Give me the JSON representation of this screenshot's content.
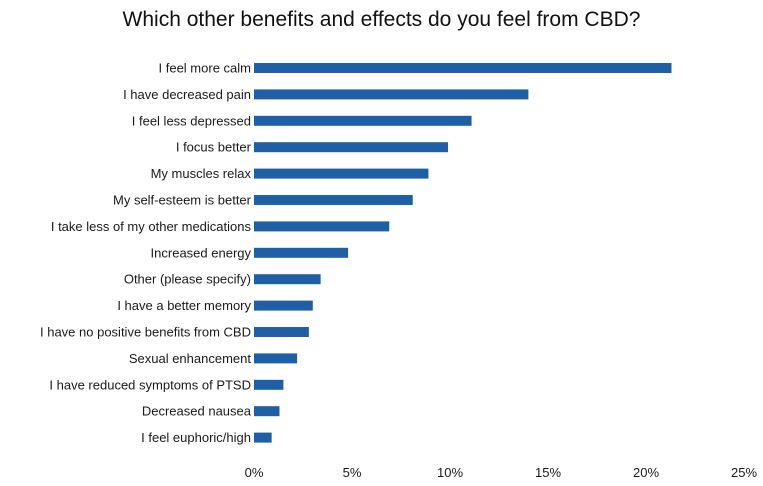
{
  "chart_data": {
    "type": "bar",
    "orientation": "horizontal",
    "title": "Which other benefits and effects do you feel from CBD?",
    "xlabel": "",
    "ylabel": "",
    "categories": [
      "I feel more calm",
      "I have decreased pain",
      "I feel less depressed",
      "I focus better",
      "My muscles relax",
      "My self-esteem is better",
      "I take less of my other medications",
      "Increased energy",
      "Other (please specify)",
      "I have a better memory",
      "I have no positive benefits from CBD",
      "Sexual enhancement",
      "I have reduced symptoms of PTSD",
      "Decreased nausea",
      "I feel euphoric/high"
    ],
    "values": [
      21.3,
      14.0,
      11.1,
      9.9,
      8.9,
      8.1,
      6.9,
      4.8,
      3.4,
      3.0,
      2.8,
      2.2,
      1.5,
      1.3,
      0.9
    ],
    "xlim": [
      0,
      25
    ],
    "x_ticks": [
      "0%",
      "5%",
      "10%",
      "15%",
      "20%",
      "25%"
    ],
    "grid": false,
    "legend": "none",
    "bar_color": "#1f5fa6"
  }
}
